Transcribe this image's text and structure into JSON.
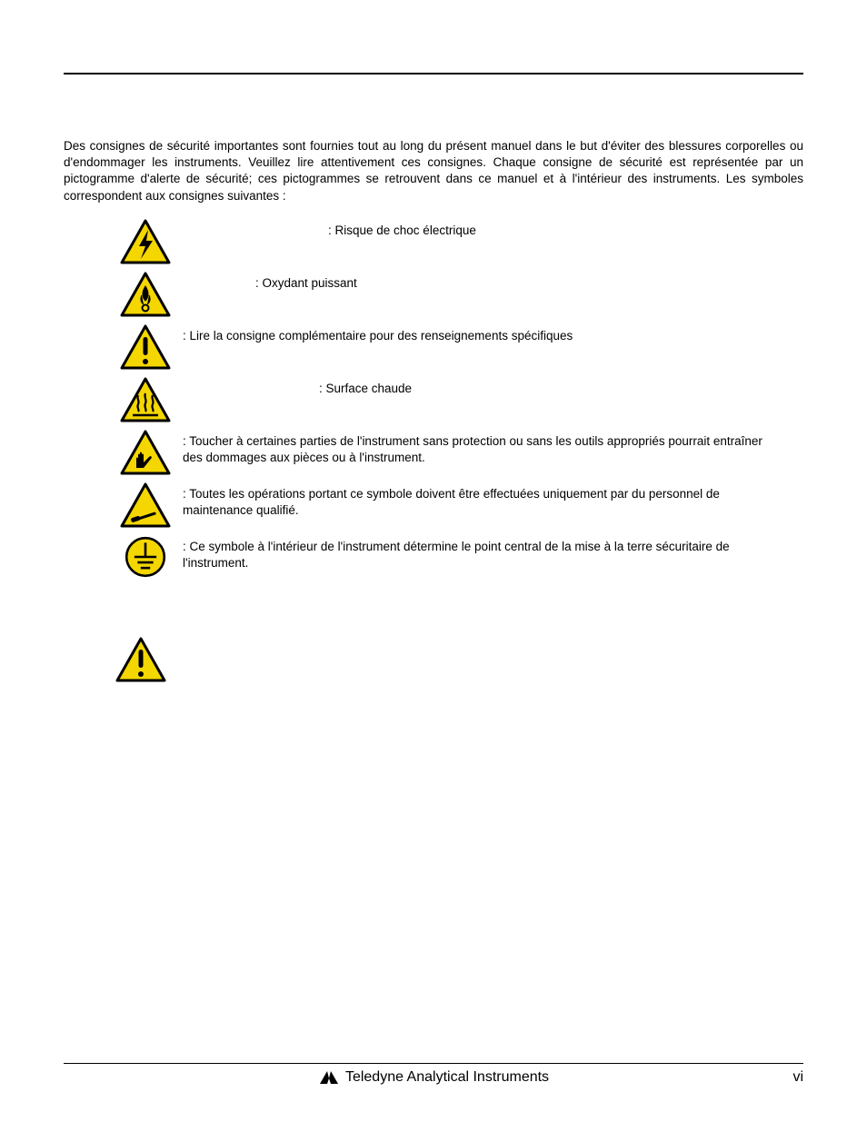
{
  "colors": {
    "warning_yellow": "#f4d600",
    "warning_stroke": "#000000",
    "text": "#000000",
    "background": "#ffffff"
  },
  "intro_text": "Des consignes de sécurité importantes sont fournies tout au long du présent manuel dans le but d'éviter des blessures corporelles ou d'endommager les instruments. Veuillez lire attentivement ces consignes. Chaque consigne de sécurité est représentée par un pictogramme d'alerte de sécurité; ces pictogrammes se retrouvent dans ce manuel et à l'intérieur des instruments. Les symboles correspondent aux consignes suivantes :",
  "symbols": [
    {
      "icon": "electric",
      "text": ": Risque de choc électrique",
      "justify": false,
      "pad": 160
    },
    {
      "icon": "flame",
      "text": ": Oxydant puissant",
      "justify": false,
      "pad": 80
    },
    {
      "icon": "exclaim",
      "text": ": Lire la consigne complémentaire pour des renseignements spécifiques",
      "justify": true,
      "pad": 0
    },
    {
      "icon": "heat",
      "text": ": Surface chaude",
      "justify": false,
      "pad": 150
    },
    {
      "icon": "hand",
      "text": ": Toucher à certaines parties de l'instrument sans protection ou sans les outils appropriés pourrait entraîner des dommages aux pièces ou à l'instrument.",
      "justify": false,
      "pad": 0
    },
    {
      "icon": "tech",
      "text": ": Toutes les opérations portant ce symbole doivent être effectuées uniquement par du personnel de maintenance qualifié.",
      "justify": false,
      "pad": 0
    },
    {
      "icon": "ground",
      "text": ": Ce symbole à l'intérieur de l'instrument détermine le point central de la mise à la terre sécuritaire de l'instrument.",
      "justify": false,
      "pad": 0
    }
  ],
  "lone_icon": "exclaim",
  "footer": {
    "company": "Teledyne Analytical Instruments",
    "page": "vi"
  }
}
